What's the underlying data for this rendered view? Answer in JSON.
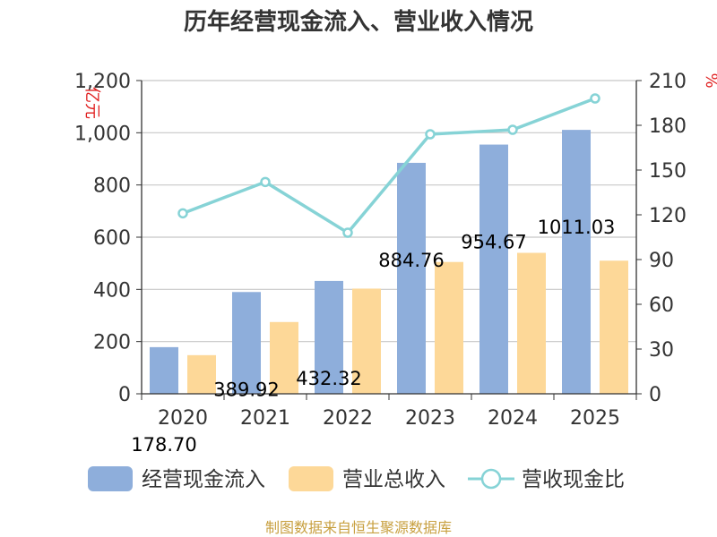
{
  "chart_data": {
    "type": "bar",
    "title": "历年经营现金流入、营业收入情况",
    "categories": [
      "2020",
      "2021",
      "2022",
      "2023",
      "2024",
      "2025"
    ],
    "y_left": {
      "unit": "亿元",
      "ylim": [
        0,
        1200
      ],
      "ticks": [
        "0",
        "200",
        "400",
        "600",
        "800",
        "1,000",
        "1,200"
      ],
      "tick_values": [
        0,
        200,
        400,
        600,
        800,
        1000,
        1200
      ]
    },
    "y_right": {
      "unit": "%",
      "ylim": [
        0,
        210
      ],
      "ticks": [
        "0",
        "30",
        "60",
        "90",
        "120",
        "150",
        "180",
        "210"
      ],
      "tick_values": [
        0,
        30,
        60,
        90,
        120,
        150,
        180,
        210
      ]
    },
    "series": [
      {
        "name": "经营现金流入",
        "type": "bar",
        "axis": "left",
        "color": "#8eaedb",
        "values": [
          178.7,
          389.92,
          432.32,
          884.76,
          954.67,
          1011.03
        ],
        "labels": [
          "178.70",
          "389.92",
          "432.32",
          "884.76",
          "954.67",
          "1011.03"
        ]
      },
      {
        "name": "营业总收入",
        "type": "bar",
        "axis": "left",
        "color": "#fdd898",
        "values": [
          148,
          275,
          403,
          505,
          540,
          510
        ]
      },
      {
        "name": "营收现金比",
        "type": "line",
        "axis": "right",
        "color": "#86d3d6",
        "values": [
          121,
          142,
          108,
          174,
          177,
          198
        ]
      }
    ],
    "grid": true,
    "legend_position": "bottom"
  },
  "source": "制图数据来自恒生聚源数据库"
}
